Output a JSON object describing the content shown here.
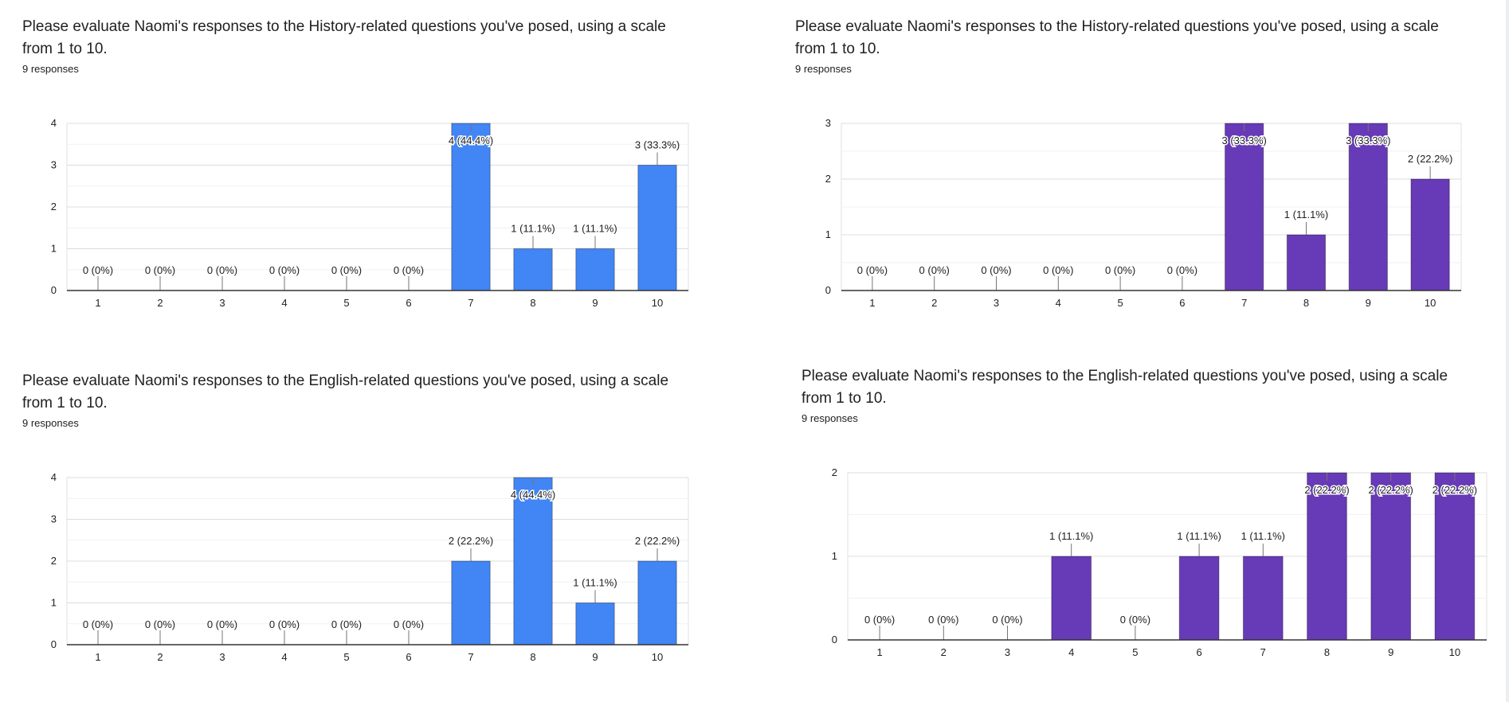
{
  "colors": {
    "blue": "#4285f4",
    "purple": "#673ab7"
  },
  "questions": [
    {
      "title": "Please evaluate Naomi's responses to the History-related questions you've posed, using a scale from 1 to 10.",
      "responses": "9 responses"
    },
    {
      "title": "Please evaluate Naomi's responses to the History-related questions you've posed, using a scale from 1 to 10.",
      "responses": "9 responses"
    },
    {
      "title": "Please evaluate Naomi's responses to the English-related questions you've posed, using a scale from 1 to 10.",
      "responses": "9 responses"
    },
    {
      "title": "Please evaluate Naomi's responses to the English-related questions you've posed, using a scale from 1 to 10.",
      "responses": "9 responses"
    }
  ],
  "chart_data": [
    {
      "type": "bar",
      "categories": [
        "1",
        "2",
        "3",
        "4",
        "5",
        "6",
        "7",
        "8",
        "9",
        "10"
      ],
      "values": [
        0,
        0,
        0,
        0,
        0,
        0,
        4,
        1,
        1,
        3
      ],
      "data_labels": [
        "0 (0%)",
        "0 (0%)",
        "0 (0%)",
        "0 (0%)",
        "0 (0%)",
        "0 (0%)",
        "4 (44.4%)",
        "1 (11.1%)",
        "1 (11.1%)",
        "3 (33.3%)"
      ],
      "yticks": [
        "0",
        "1",
        "2",
        "3",
        "4"
      ],
      "ylim": [
        0,
        4
      ],
      "grid": true,
      "color": "#4285f4"
    },
    {
      "type": "bar",
      "categories": [
        "1",
        "2",
        "3",
        "4",
        "5",
        "6",
        "7",
        "8",
        "9",
        "10"
      ],
      "values": [
        0,
        0,
        0,
        0,
        0,
        0,
        3,
        1,
        3,
        2
      ],
      "data_labels": [
        "0 (0%)",
        "0 (0%)",
        "0 (0%)",
        "0 (0%)",
        "0 (0%)",
        "0 (0%)",
        "3 (33.3%)",
        "1 (11.1%)",
        "3 (33.3%)",
        "2 (22.2%)"
      ],
      "yticks": [
        "0",
        "1",
        "2",
        "3"
      ],
      "ylim": [
        0,
        3
      ],
      "grid": true,
      "color": "#673ab7"
    },
    {
      "type": "bar",
      "categories": [
        "1",
        "2",
        "3",
        "4",
        "5",
        "6",
        "7",
        "8",
        "9",
        "10"
      ],
      "values": [
        0,
        0,
        0,
        0,
        0,
        0,
        2,
        4,
        1,
        2
      ],
      "data_labels": [
        "0 (0%)",
        "0 (0%)",
        "0 (0%)",
        "0 (0%)",
        "0 (0%)",
        "0 (0%)",
        "2 (22.2%)",
        "4 (44.4%)",
        "1 (11.1%)",
        "2 (22.2%)"
      ],
      "yticks": [
        "0",
        "1",
        "2",
        "3",
        "4"
      ],
      "ylim": [
        0,
        4
      ],
      "grid": true,
      "color": "#4285f4"
    },
    {
      "type": "bar",
      "categories": [
        "1",
        "2",
        "3",
        "4",
        "5",
        "6",
        "7",
        "8",
        "9",
        "10"
      ],
      "values": [
        0,
        0,
        0,
        1,
        0,
        1,
        1,
        2,
        2,
        2
      ],
      "data_labels": [
        "0 (0%)",
        "0 (0%)",
        "0 (0%)",
        "1 (11.1%)",
        "0 (0%)",
        "1 (11.1%)",
        "1 (11.1%)",
        "2 (22.2%)",
        "2 (22.2%)",
        "2 (22.2%)"
      ],
      "yticks": [
        "0",
        "1",
        "2"
      ],
      "ylim": [
        0,
        2
      ],
      "grid": true,
      "color": "#673ab7"
    }
  ]
}
